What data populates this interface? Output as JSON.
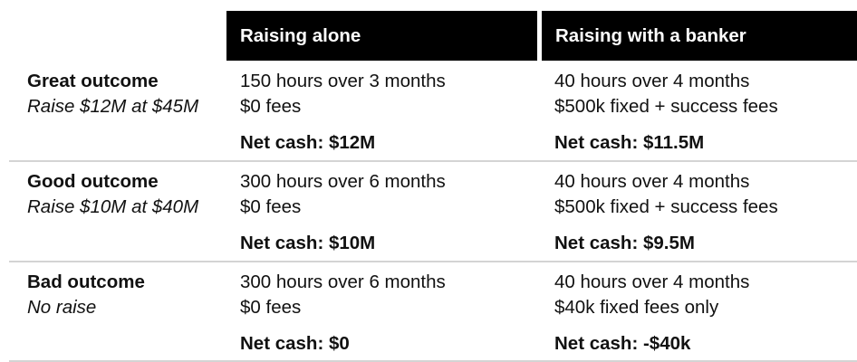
{
  "table": {
    "headers": [
      "Raising alone",
      "Raising with a banker"
    ],
    "rows": [
      {
        "label": "Great outcome",
        "sublabel": "Raise $12M at $45M",
        "cells": [
          {
            "lines": [
              "150 hours over 3 months",
              "$0 fees"
            ],
            "net": "Net cash: $12M"
          },
          {
            "lines": [
              "40 hours over 4 months",
              "$500k fixed + success fees"
            ],
            "net": "Net cash: $11.5M"
          }
        ]
      },
      {
        "label": "Good outcome",
        "sublabel": "Raise $10M at $40M",
        "cells": [
          {
            "lines": [
              "300 hours over 6 months",
              "$0 fees"
            ],
            "net": "Net cash: $10M"
          },
          {
            "lines": [
              "40 hours over 4 months",
              "$500k fixed + success fees"
            ],
            "net": "Net cash: $9.5M"
          }
        ]
      },
      {
        "label": "Bad outcome",
        "sublabel": "No raise",
        "cells": [
          {
            "lines": [
              "300 hours over 6 months",
              "$0 fees"
            ],
            "net": "Net cash: $0"
          },
          {
            "lines": [
              "40 hours over 4 months",
              "$40k fixed fees only"
            ],
            "net": "Net cash: -$40k"
          }
        ]
      }
    ]
  }
}
